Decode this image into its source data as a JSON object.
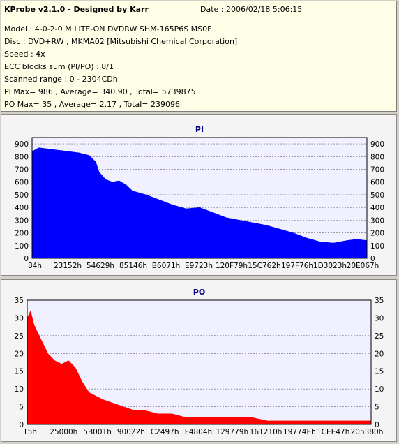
{
  "header": {
    "title": "KProbe v2.1.0 - Designed by Karr",
    "date": "Date : 2006/02/18 5:06:15",
    "lines": [
      "Model : 4-0-2-0 M:LITE-ON DVDRW SHM-165P6S MS0F",
      "Disc : DVD+RW , MKMA02 [Mitsubishi Chemical Corporation]",
      "Speed : 4x",
      "ECC blocks sum (PI/PO) : 8/1",
      "Scanned range : 0 - 2304CDh",
      "PI Max= 986 , Average= 340.90 , Total= 5739875",
      "PO Max= 35 , Average= 2.17 , Total= 239096"
    ]
  },
  "charts": {
    "pi": {
      "color": "#0000ff",
      "chart_data": {
        "type": "area",
        "title": "PI",
        "ylim": [
          0,
          950
        ],
        "yticks": [
          0,
          100,
          200,
          300,
          400,
          500,
          600,
          700,
          800,
          900
        ],
        "xticks": [
          "84h",
          "23152h",
          "54629h",
          "85146h",
          "B6071h",
          "E9723h",
          "120F79h",
          "15C762h",
          "197F76h",
          "1D3023h",
          "20E067h"
        ],
        "x": [
          0,
          0.02,
          0.05,
          0.08,
          0.11,
          0.14,
          0.17,
          0.19,
          0.2,
          0.22,
          0.24,
          0.26,
          0.28,
          0.3,
          0.34,
          0.38,
          0.42,
          0.46,
          0.5,
          0.54,
          0.58,
          0.62,
          0.66,
          0.7,
          0.74,
          0.78,
          0.82,
          0.86,
          0.9,
          0.94,
          0.97,
          1.0
        ],
        "values": [
          840,
          870,
          860,
          850,
          840,
          830,
          810,
          760,
          680,
          620,
          600,
          610,
          580,
          530,
          500,
          460,
          420,
          390,
          400,
          360,
          320,
          300,
          280,
          260,
          230,
          200,
          160,
          130,
          120,
          140,
          150,
          140
        ]
      }
    },
    "po": {
      "color": "#ff0000",
      "chart_data": {
        "type": "area",
        "title": "PO",
        "ylim": [
          0,
          35
        ],
        "yticks": [
          0,
          5,
          10,
          15,
          20,
          25,
          30,
          35
        ],
        "xticks": [
          "15h",
          "25000h",
          "5B001h",
          "90022h",
          "C2497h",
          "F4804h",
          "129779h",
          "161210h",
          "19774Eh",
          "1CEE47h",
          "205380h"
        ],
        "x": [
          0,
          0.01,
          0.02,
          0.04,
          0.06,
          0.08,
          0.1,
          0.12,
          0.14,
          0.16,
          0.18,
          0.2,
          0.22,
          0.25,
          0.28,
          0.31,
          0.34,
          0.38,
          0.42,
          0.46,
          0.5,
          0.55,
          0.6,
          0.65,
          0.7,
          0.75,
          0.8,
          0.85,
          0.9,
          0.95,
          1.0
        ],
        "values": [
          30,
          32,
          28,
          24,
          20,
          18,
          17,
          18,
          16,
          12,
          9,
          8,
          7,
          6,
          5,
          4,
          4,
          3,
          3,
          2,
          2,
          2,
          2,
          2,
          1,
          1,
          1,
          1,
          1,
          1,
          1
        ]
      }
    }
  }
}
